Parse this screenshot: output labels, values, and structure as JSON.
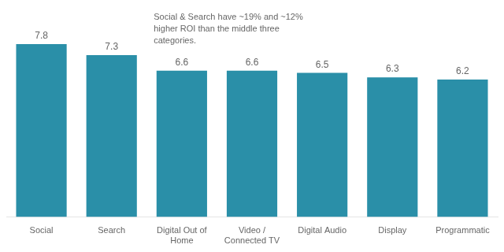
{
  "chart_data": {
    "type": "bar",
    "categories": [
      "Social",
      "Search",
      "Digital Out of\nHome",
      "Video /\nConnected TV",
      "Digital Audio",
      "Display",
      "Programmatic"
    ],
    "values": [
      7.8,
      7.3,
      6.6,
      6.6,
      6.5,
      6.3,
      6.2
    ],
    "color": "#2a8fa8",
    "ylim": [
      0,
      9.5
    ],
    "grid": false,
    "tick_labels": "x",
    "data_labels": true,
    "annotation": "Social & Search have ~19% and ~12%\nhigher ROI than the middle three\ncategories."
  }
}
